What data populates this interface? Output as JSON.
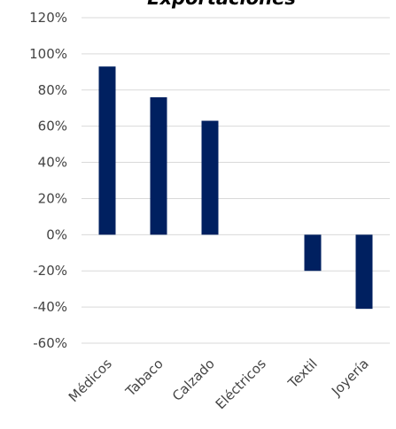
{
  "chart_data": {
    "type": "bar",
    "title": "Exportaciones",
    "xlabel": "",
    "ylabel": "",
    "categories": [
      "Médicos",
      "Tabaco",
      "Calzado",
      "Eléctricos",
      "Textil",
      "Joyería"
    ],
    "values": [
      0.93,
      0.76,
      0.63,
      0.0,
      -0.2,
      -0.41
    ],
    "ylim": [
      -0.6,
      1.2
    ],
    "y_ticks": [
      1.2,
      1.0,
      0.8,
      0.6,
      0.4,
      0.2,
      0.0,
      -0.2,
      -0.4,
      -0.6
    ],
    "y_tick_labels": [
      "120%",
      "100%",
      "80%",
      "60%",
      "40%",
      "20%",
      "0%",
      "-20%",
      "-40%",
      "-60%"
    ],
    "y_format": "percent",
    "grid": true,
    "legend": "none",
    "bar_color": "#002060",
    "grid_color": "#d9d9d9"
  }
}
